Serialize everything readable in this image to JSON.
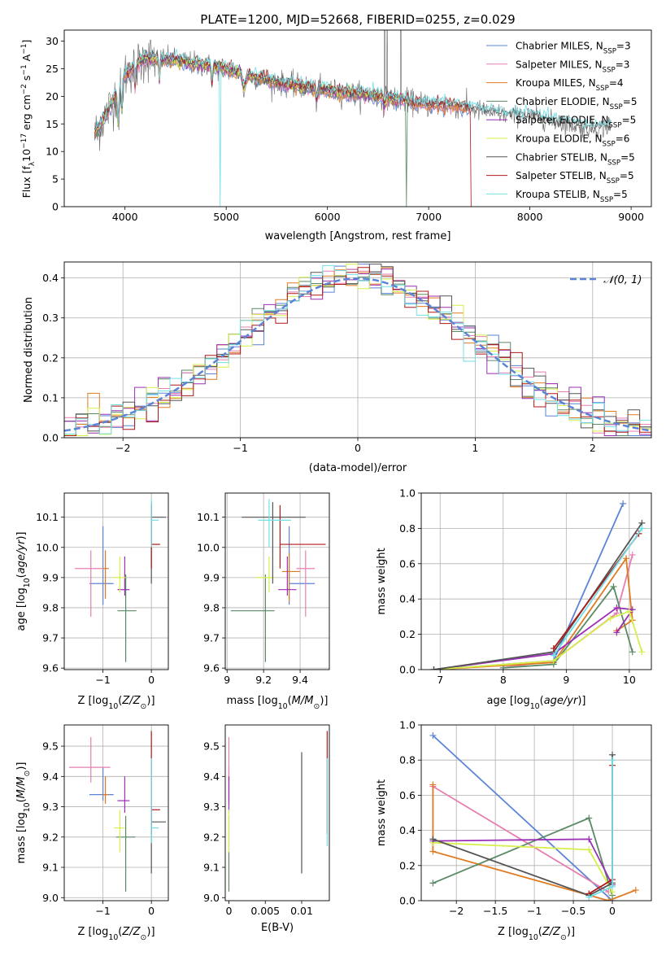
{
  "figure_title": "PLATE=1200, MJD=52668, FIBERID=0255, z=0.029",
  "colors": {
    "Chabrier MILES": "#5b84d6",
    "Salpeter MILES": "#e77fb0",
    "Kroupa MILES": "#e07b22",
    "Chabrier ELODIE": "#5a8a66",
    "Salpeter ELODIE": "#9b2fb5",
    "Kroupa ELODIE": "#d6ef4b",
    "Chabrier STELIB": "#555555",
    "Salpeter STELIB": "#b01818",
    "Kroupa STELIB": "#6fe0e6",
    "gaussian": "#5b84d6"
  },
  "chart_data": [
    {
      "id": "spectrum",
      "type": "line",
      "xlabel": "wavelength [Angstrom, rest frame]",
      "ylabel": "Flux [fλ10⁻¹⁷ erg cm⁻² s⁻¹ A⁻¹]",
      "xlim": [
        3400,
        9200
      ],
      "ylim": [
        0,
        32
      ],
      "xticks": [
        4000,
        5000,
        6000,
        7000,
        8000,
        9000
      ],
      "yticks": [
        0,
        5,
        10,
        15,
        20,
        25,
        30
      ],
      "legend_position": "top-right",
      "continuum": [
        [
          3700,
          17
        ],
        [
          3850,
          20
        ],
        [
          4000,
          24
        ],
        [
          4200,
          27
        ],
        [
          4500,
          26.5
        ],
        [
          5000,
          25
        ],
        [
          5500,
          22.5
        ],
        [
          6000,
          21
        ],
        [
          6500,
          20
        ],
        [
          7000,
          18.5
        ],
        [
          7300,
          18.2
        ],
        [
          7500,
          17.5
        ],
        [
          7800,
          16.5
        ],
        [
          8000,
          16.5
        ],
        [
          8300,
          15.2
        ],
        [
          8600,
          14.2
        ],
        [
          8800,
          14.5
        ]
      ],
      "series": [
        {
          "name": "Chabrier MILES, N_SSP=3",
          "legend": "Chabrier MILES, NSSP=3"
        },
        {
          "name": "Salpeter MILES, N_SSP=3",
          "legend": "Salpeter MILES, NSSP=3"
        },
        {
          "name": "Kroupa MILES, N_SSP=4",
          "legend": "Kroupa MILES, NSSP=4"
        },
        {
          "name": "Chabrier ELODIE, N_SSP=5",
          "legend": "Chabrier ELODIE, NSSP=5"
        },
        {
          "name": "Salpeter ELODIE, N_SSP=5",
          "legend": "Salpeter ELODIE, NSSP=5"
        },
        {
          "name": "Kroupa ELODIE, N_SSP=6",
          "legend": "Kroupa ELODIE, NSSP=6"
        },
        {
          "name": "Chabrier STELIB, N_SSP=5",
          "legend": "Chabrier STELIB, NSSP=5"
        },
        {
          "name": "Salpeter STELIB, N_SSP=5",
          "legend": "Salpeter STELIB, NSSP=5"
        },
        {
          "name": "Kroupa STELIB, N_SSP=5",
          "legend": "Kroupa STELIB, NSSP=5"
        }
      ]
    },
    {
      "id": "residuals",
      "type": "histogram",
      "xlabel": "(data-model)/error",
      "ylabel": "Normed distribution",
      "xlim": [
        -2.5,
        2.5
      ],
      "ylim": [
        0,
        0.44
      ],
      "xticks": [
        -2,
        -1,
        0,
        1,
        2
      ],
      "yticks": [
        0.0,
        0.1,
        0.2,
        0.3,
        0.4
      ],
      "grid": true,
      "legend_position": "top-right",
      "gaussian_label": "𝒩(0, 1)",
      "bin_width": 0.1
    },
    {
      "id": "age_vs_Z",
      "type": "errorbar",
      "xlabel": "Z [log10(Z/Z⊙)]",
      "ylabel": "age  [log10(age/yr)]",
      "xlim": [
        -1.8,
        0.35
      ],
      "ylim": [
        9.595,
        10.18
      ],
      "xticks": [
        -1,
        0
      ],
      "yticks": [
        9.6,
        9.7,
        9.8,
        9.9,
        10.0,
        10.1
      ],
      "grid": true,
      "points": [
        {
          "model": "Chabrier MILES",
          "x": -1.0,
          "y": 9.88,
          "xerr": [
            0.28,
            0.22
          ],
          "yerr": [
            0.07,
            0.19
          ]
        },
        {
          "model": "Salpeter MILES",
          "x": -1.25,
          "y": 9.93,
          "xerr": [
            0.33,
            0.27
          ],
          "yerr": [
            0.16,
            0.06
          ]
        },
        {
          "model": "Kroupa MILES",
          "x": -0.95,
          "y": 9.93,
          "xerr": [
            0.05,
            0.07
          ],
          "yerr": [
            0.1,
            0.06
          ]
        },
        {
          "model": "Chabrier ELODIE",
          "x": -0.53,
          "y": 9.79,
          "xerr": [
            0.17,
            0.22
          ],
          "yerr": [
            0.17,
            0.12
          ]
        },
        {
          "model": "Salpeter ELODIE",
          "x": -0.55,
          "y": 9.86,
          "xerr": [
            0.15,
            0.1
          ],
          "yerr": [
            0.02,
            0.11
          ]
        },
        {
          "model": "Kroupa ELODIE",
          "x": -0.65,
          "y": 9.9,
          "xerr": [
            0.15,
            0.12
          ],
          "yerr": [
            0.05,
            0.07
          ]
        },
        {
          "model": "Chabrier STELIB",
          "x": 0.0,
          "y": 10.1,
          "xerr": [
            0.0,
            0.3
          ],
          "yerr": [
            0.22,
            0.05
          ]
        },
        {
          "model": "Salpeter STELIB",
          "x": 0.0,
          "y": 10.01,
          "xerr": [
            0.0,
            0.18
          ],
          "yerr": [
            0.08,
            0.13
          ]
        },
        {
          "model": "Kroupa STELIB",
          "x": 0.0,
          "y": 10.09,
          "xerr": [
            0.0,
            0.15
          ],
          "yerr": [
            0.09,
            0.07
          ]
        }
      ]
    },
    {
      "id": "age_vs_mass",
      "type": "errorbar",
      "xlabel": "mass [log10(M/M⊙)]",
      "ylabel": "",
      "xlim": [
        8.99,
        9.56
      ],
      "ylim": [
        9.595,
        10.18
      ],
      "xticks": [
        9.0,
        9.2,
        9.4
      ],
      "yticks": [
        9.6,
        9.7,
        9.8,
        9.9,
        10.0,
        10.1
      ],
      "grid": true,
      "points": [
        {
          "model": "Chabrier MILES",
          "x": 9.34,
          "y": 9.88,
          "xerr": [
            0.0,
            0.14
          ],
          "yerr": [
            0.07,
            0.19
          ]
        },
        {
          "model": "Salpeter MILES",
          "x": 9.43,
          "y": 9.93,
          "xerr": [
            0.05,
            0.05
          ],
          "yerr": [
            0.16,
            0.06
          ]
        },
        {
          "model": "Kroupa MILES",
          "x": 9.34,
          "y": 9.92,
          "xerr": [
            0.04,
            0.06
          ],
          "yerr": [
            0.1,
            0.06
          ]
        },
        {
          "model": "Chabrier ELODIE",
          "x": 9.21,
          "y": 9.79,
          "xerr": [
            0.19,
            0.05
          ],
          "yerr": [
            0.17,
            0.12
          ]
        },
        {
          "model": "Salpeter ELODIE",
          "x": 9.33,
          "y": 9.86,
          "xerr": [
            0.05,
            0.05
          ],
          "yerr": [
            0.02,
            0.11
          ]
        },
        {
          "model": "Kroupa ELODIE",
          "x": 9.23,
          "y": 9.9,
          "xerr": [
            0.07,
            0.03
          ],
          "yerr": [
            0.05,
            0.07
          ]
        },
        {
          "model": "Chabrier STELIB",
          "x": 9.25,
          "y": 10.1,
          "xerr": [
            0.17,
            0.18
          ],
          "yerr": [
            0.22,
            0.05
          ]
        },
        {
          "model": "Salpeter STELIB",
          "x": 9.29,
          "y": 10.01,
          "xerr": [
            0.0,
            0.25
          ],
          "yerr": [
            0.08,
            0.13
          ]
        },
        {
          "model": "Kroupa STELIB",
          "x": 9.23,
          "y": 10.09,
          "xerr": [
            0.06,
            0.12
          ],
          "yerr": [
            0.09,
            0.07
          ]
        }
      ]
    },
    {
      "id": "mass_weight_vs_age",
      "type": "line",
      "xlabel": "age  [log10(age/yr)]",
      "ylabel": "mass weight",
      "xlim": [
        6.7,
        10.35
      ],
      "ylim": [
        0,
        1.0
      ],
      "xticks": [
        7,
        8,
        9,
        10
      ],
      "yticks": [
        0.0,
        0.2,
        0.4,
        0.6,
        0.8,
        1.0
      ],
      "grid": true,
      "series": [
        {
          "model": "Chabrier MILES",
          "points": [
            [
              6.9,
              0.0
            ],
            [
              8.8,
              0.05
            ],
            [
              9.9,
              0.94
            ]
          ]
        },
        {
          "model": "Salpeter MILES",
          "points": [
            [
              8.0,
              0.01
            ],
            [
              8.8,
              0.05
            ],
            [
              9.8,
              0.32
            ],
            [
              10.05,
              0.65
            ]
          ]
        },
        {
          "model": "Kroupa MILES",
          "points": [
            [
              6.9,
              0.0
            ],
            [
              8.8,
              0.04
            ],
            [
              9.95,
              0.63
            ],
            [
              10.05,
              0.28
            ],
            [
              9.8,
              0.22
            ]
          ]
        },
        {
          "model": "Chabrier ELODIE",
          "points": [
            [
              8.0,
              0.01
            ],
            [
              8.8,
              0.03
            ],
            [
              9.75,
              0.47
            ],
            [
              10.05,
              0.1
            ]
          ]
        },
        {
          "model": "Salpeter ELODIE",
          "points": [
            [
              6.9,
              0.0
            ],
            [
              8.8,
              0.09
            ],
            [
              9.8,
              0.35
            ],
            [
              10.05,
              0.34
            ],
            [
              9.8,
              0.21
            ]
          ]
        },
        {
          "model": "Kroupa ELODIE",
          "points": [
            [
              6.9,
              0.0
            ],
            [
              8.8,
              0.05
            ],
            [
              9.7,
              0.29
            ],
            [
              10.0,
              0.33
            ],
            [
              10.2,
              0.1
            ]
          ]
        },
        {
          "model": "Chabrier STELIB",
          "points": [
            [
              6.9,
              0.0
            ],
            [
              8.8,
              0.1
            ],
            [
              10.2,
              0.83
            ]
          ]
        },
        {
          "model": "Salpeter STELIB",
          "points": [
            [
              8.8,
              0.12
            ],
            [
              10.15,
              0.77
            ]
          ]
        },
        {
          "model": "Kroupa STELIB",
          "points": [
            [
              8.8,
              0.08
            ],
            [
              10.2,
              0.8
            ]
          ]
        }
      ]
    },
    {
      "id": "mass_vs_Z",
      "type": "errorbar",
      "xlabel": "Z [log10(Z/Z⊙)]",
      "ylabel": "mass [log10(M/M⊙)]",
      "xlim": [
        -1.8,
        0.35
      ],
      "ylim": [
        8.99,
        9.57
      ],
      "xticks": [
        -1,
        0
      ],
      "yticks": [
        9.0,
        9.1,
        9.2,
        9.3,
        9.4,
        9.5
      ],
      "grid": true,
      "points": [
        {
          "model": "Chabrier MILES",
          "x": -1.0,
          "y": 9.34,
          "xerr": [
            0.28,
            0.22
          ],
          "yerr": [
            0.02,
            0.09
          ]
        },
        {
          "model": "Salpeter MILES",
          "x": -1.25,
          "y": 9.43,
          "xerr": [
            0.45,
            0.4
          ],
          "yerr": [
            0.05,
            0.1
          ]
        },
        {
          "model": "Kroupa MILES",
          "x": -0.95,
          "y": 9.34,
          "xerr": [
            0.05,
            0.07
          ],
          "yerr": [
            0.03,
            0.06
          ]
        },
        {
          "model": "Chabrier ELODIE",
          "x": -0.53,
          "y": 9.2,
          "xerr": [
            0.2,
            0.2
          ],
          "yerr": [
            0.18,
            0.07
          ]
        },
        {
          "model": "Salpeter ELODIE",
          "x": -0.55,
          "y": 9.32,
          "xerr": [
            0.15,
            0.1
          ],
          "yerr": [
            0.04,
            0.08
          ]
        },
        {
          "model": "Kroupa ELODIE",
          "x": -0.65,
          "y": 9.23,
          "xerr": [
            0.12,
            0.1
          ],
          "yerr": [
            0.08,
            0.06
          ]
        },
        {
          "model": "Chabrier STELIB",
          "x": 0.0,
          "y": 9.25,
          "xerr": [
            0.0,
            0.3
          ],
          "yerr": [
            0.17,
            0.05
          ]
        },
        {
          "model": "Salpeter STELIB",
          "x": 0.0,
          "y": 9.29,
          "xerr": [
            0.0,
            0.18
          ],
          "yerr": [
            0.08,
            0.26
          ]
        },
        {
          "model": "Kroupa STELIB",
          "x": 0.0,
          "y": 9.23,
          "xerr": [
            0.0,
            0.15
          ],
          "yerr": [
            0.05,
            0.23
          ]
        }
      ]
    },
    {
      "id": "mass_vs_ebv",
      "type": "errorbar",
      "xlabel": "E(B-V)",
      "ylabel": "",
      "xlim": [
        -0.0005,
        0.0138
      ],
      "ylim": [
        8.99,
        9.57
      ],
      "xticks": [
        0.0,
        0.005,
        0.01
      ],
      "yticks": [
        9.0,
        9.1,
        9.2,
        9.3,
        9.4,
        9.5
      ],
      "grid": false,
      "points": [
        {
          "model": "Chabrier MILES",
          "x": 0.0,
          "y": 9.34,
          "yerr": [
            0.02,
            0.09
          ]
        },
        {
          "model": "Salpeter MILES",
          "x": 0.0,
          "y": 9.43,
          "yerr": [
            0.05,
            0.1
          ]
        },
        {
          "model": "Kroupa MILES",
          "x": 0.0,
          "y": 9.34,
          "yerr": [
            0.03,
            0.06
          ]
        },
        {
          "model": "Chabrier ELODIE",
          "x": 0.0,
          "y": 9.2,
          "yerr": [
            0.18,
            0.07
          ]
        },
        {
          "model": "Salpeter ELODIE",
          "x": 0.0,
          "y": 9.32,
          "yerr": [
            0.04,
            0.08
          ]
        },
        {
          "model": "Kroupa ELODIE",
          "x": 0.0,
          "y": 9.23,
          "yerr": [
            0.08,
            0.06
          ]
        },
        {
          "model": "Chabrier STELIB",
          "x": 0.01,
          "y": 9.25,
          "yerr": [
            0.17,
            0.23
          ]
        },
        {
          "model": "Salpeter STELIB",
          "x": 0.0135,
          "y": 9.29,
          "yerr": [
            0.08,
            0.26
          ]
        },
        {
          "model": "Kroupa STELIB",
          "x": 0.0135,
          "y": 9.23,
          "yerr": [
            0.06,
            0.23
          ]
        }
      ]
    },
    {
      "id": "mass_weight_vs_Z",
      "type": "line",
      "xlabel": "Z [log10(Z/Z⊙)]",
      "ylabel": "mass weight",
      "xlim": [
        -2.45,
        0.5
      ],
      "ylim": [
        0,
        1.0
      ],
      "xticks": [
        -2.0,
        -1.5,
        -1.0,
        -0.5,
        0.0
      ],
      "yticks": [
        0.0,
        0.2,
        0.4,
        0.6,
        0.8,
        1.0
      ],
      "grid": true,
      "series": [
        {
          "model": "Chabrier MILES",
          "points": [
            [
              -2.3,
              0.94
            ],
            [
              0.0,
              0.0
            ]
          ]
        },
        {
          "model": "Salpeter MILES",
          "points": [
            [
              -2.3,
              0.65
            ],
            [
              -0.05,
              0.05
            ]
          ]
        },
        {
          "model": "Kroupa MILES",
          "points": [
            [
              -2.3,
              0.66
            ],
            [
              -2.3,
              0.28
            ],
            [
              -0.05,
              0.0
            ],
            [
              0.3,
              0.06
            ]
          ]
        },
        {
          "model": "Chabrier ELODIE",
          "points": [
            [
              -2.3,
              0.1
            ],
            [
              -0.3,
              0.47
            ],
            [
              0.0,
              0.03
            ]
          ]
        },
        {
          "model": "Salpeter ELODIE",
          "points": [
            [
              -2.3,
              0.34
            ],
            [
              -0.3,
              0.35
            ],
            [
              0.0,
              0.09
            ]
          ]
        },
        {
          "model": "Kroupa ELODIE",
          "points": [
            [
              -2.3,
              0.33
            ],
            [
              -0.3,
              0.29
            ],
            [
              0.0,
              0.05
            ]
          ]
        },
        {
          "model": "Chabrier STELIB",
          "points": [
            [
              -2.3,
              0.35
            ],
            [
              -0.3,
              0.03
            ],
            [
              0.0,
              0.1
            ],
            [
              0.0,
              0.83
            ]
          ]
        },
        {
          "model": "Salpeter STELIB",
          "points": [
            [
              -0.3,
              0.04
            ],
            [
              0.0,
              0.12
            ],
            [
              0.0,
              0.77
            ]
          ]
        },
        {
          "model": "Kroupa STELIB",
          "points": [
            [
              -0.3,
              0.02
            ],
            [
              0.0,
              0.08
            ],
            [
              0.0,
              0.8
            ]
          ]
        }
      ]
    }
  ]
}
